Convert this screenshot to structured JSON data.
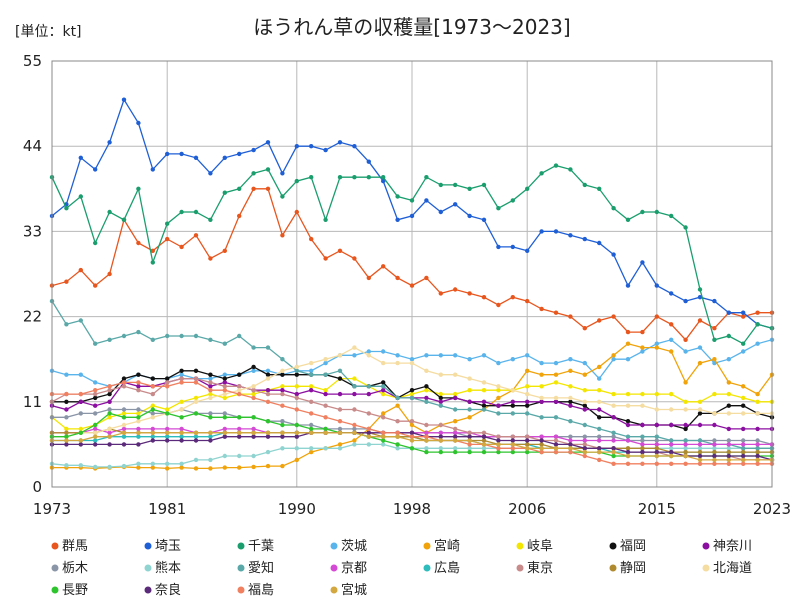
{
  "chart_data": {
    "type": "line",
    "title": "ほうれん草の収穫量[1973～2023]",
    "unit_label": "[単位：kt]",
    "xlabel": "",
    "ylabel": "",
    "xlim": [
      1973,
      2023
    ],
    "ylim": [
      0,
      55
    ],
    "x_ticks": [
      1973,
      1981,
      1990,
      1998,
      2006,
      2015,
      2023
    ],
    "y_ticks": [
      0,
      11,
      22,
      33,
      44,
      55
    ],
    "grid": true,
    "legend_position": "bottom",
    "x": [
      1973,
      1974,
      1975,
      1976,
      1977,
      1978,
      1979,
      1980,
      1981,
      1982,
      1983,
      1984,
      1985,
      1986,
      1987,
      1988,
      1989,
      1990,
      1991,
      1992,
      1993,
      1994,
      1995,
      1996,
      1997,
      1998,
      1999,
      2000,
      2001,
      2002,
      2003,
      2004,
      2005,
      2006,
      2007,
      2008,
      2009,
      2010,
      2011,
      2012,
      2013,
      2014,
      2015,
      2016,
      2017,
      2018,
      2019,
      2020,
      2021,
      2022,
      2023
    ],
    "series": [
      {
        "name": "群馬",
        "color": "#e8561e",
        "values": [
          26,
          26.5,
          28,
          26,
          27.5,
          34.5,
          31.5,
          30.5,
          32,
          31,
          32.5,
          29.5,
          30.5,
          35,
          38.5,
          38.5,
          32.5,
          35.5,
          32,
          29.5,
          30.5,
          29.5,
          27,
          28.5,
          27,
          26,
          27,
          25,
          25.5,
          25,
          24.5,
          23.5,
          24.5,
          24,
          23,
          22.5,
          22,
          20.5,
          21.5,
          22,
          20,
          20,
          22,
          21,
          19,
          21.5,
          20.5,
          22.5,
          22,
          22.5,
          22.5
        ]
      },
      {
        "name": "埼玉",
        "color": "#1f5fd6",
        "values": [
          35,
          36.5,
          42.5,
          41,
          44.5,
          50,
          47,
          41,
          43,
          43,
          42.5,
          40.5,
          42.5,
          43,
          43.5,
          44.5,
          40.5,
          44,
          44,
          43.5,
          44.5,
          44,
          42,
          39.5,
          34.5,
          35,
          37,
          35.5,
          36.5,
          35,
          34.5,
          31,
          31,
          30.5,
          33,
          33,
          32.5,
          32,
          31.5,
          30,
          26,
          29,
          26,
          25,
          24,
          24.5,
          24,
          22.5,
          22.5,
          21,
          20.5
        ]
      },
      {
        "name": "千葉",
        "color": "#1a9e6e",
        "values": [
          40,
          36,
          37.5,
          31.5,
          35.5,
          34.5,
          38.5,
          29,
          34,
          35.5,
          35.5,
          34.5,
          38,
          38.5,
          40.5,
          41,
          37.5,
          39.5,
          40,
          34.5,
          40,
          40,
          40,
          40,
          37.5,
          37,
          40,
          39,
          39,
          38.5,
          39,
          36,
          37,
          38.5,
          40.5,
          41.5,
          41,
          39,
          38.5,
          36,
          34.5,
          35.5,
          35.5,
          35,
          33.5,
          25.5,
          19,
          19.5,
          18.5,
          21,
          20.5
        ]
      },
      {
        "name": "茨城",
        "color": "#5ab4ec",
        "values": [
          15,
          14.5,
          14.5,
          13.5,
          13,
          13.5,
          14.5,
          14,
          14,
          14.5,
          14,
          14,
          14.5,
          14.5,
          15,
          15,
          14.5,
          15,
          15,
          16,
          17,
          17,
          17.5,
          17.5,
          17,
          16.5,
          17,
          17,
          17,
          16.5,
          17,
          16,
          16.5,
          17,
          16,
          16,
          16.5,
          16,
          14,
          16.5,
          16.5,
          17.5,
          18.5,
          19,
          17.5,
          18,
          16,
          16.5,
          17.5,
          18.5,
          19
        ]
      },
      {
        "name": "宮崎",
        "color": "#f0a30a",
        "values": [
          2.5,
          2.5,
          2.5,
          2.4,
          2.5,
          2.6,
          2.5,
          2.5,
          2.4,
          2.5,
          2.4,
          2.4,
          2.5,
          2.5,
          2.6,
          2.7,
          2.7,
          3.5,
          4.5,
          5,
          5.5,
          6,
          7.5,
          9.5,
          10.5,
          8,
          7,
          8,
          8.5,
          9,
          10,
          11.5,
          12.5,
          15,
          14.5,
          14.5,
          15,
          14.5,
          15.5,
          17,
          18.5,
          18,
          18,
          17.5,
          13.5,
          16,
          16.5,
          13.5,
          13,
          12,
          14.5
        ]
      },
      {
        "name": "岐阜",
        "color": "#f3e600",
        "values": [
          9,
          7.5,
          7.5,
          8,
          9,
          9.5,
          9.5,
          10.5,
          10,
          11,
          11.5,
          12,
          11.5,
          12,
          12,
          12.5,
          13,
          13,
          13,
          12.5,
          14,
          14,
          13,
          12,
          11.5,
          12,
          12.5,
          12,
          12,
          12.5,
          12.5,
          12.5,
          12.5,
          13,
          13,
          13.5,
          13,
          12.5,
          12.5,
          12,
          12,
          12,
          12,
          12,
          11,
          11,
          12,
          12,
          11.5,
          11,
          11
        ]
      },
      {
        "name": "福岡",
        "color": "#111111",
        "values": [
          11,
          11,
          11,
          11.5,
          12,
          14,
          14.5,
          14,
          14,
          15,
          15,
          14.5,
          14,
          14.5,
          15.5,
          14.5,
          14.5,
          14.5,
          14.5,
          14.5,
          14,
          13,
          13,
          13.5,
          11.5,
          12.5,
          13,
          11.5,
          11.5,
          11,
          10.5,
          10.5,
          10.5,
          10.5,
          11,
          11,
          11,
          10.5,
          9,
          9,
          8.5,
          8,
          8,
          8,
          7.5,
          9.5,
          9.5,
          10.5,
          10.5,
          9.5,
          9
        ]
      },
      {
        "name": "神奈川",
        "color": "#8b0fa0",
        "values": [
          10.5,
          10,
          11,
          10.5,
          11,
          13.5,
          13,
          13,
          13.5,
          14,
          14,
          13,
          13.5,
          13,
          12.5,
          12.5,
          12.5,
          12,
          12.5,
          12,
          12,
          12,
          12,
          12.5,
          11.5,
          11.5,
          11.5,
          11,
          11.5,
          11,
          11,
          10.5,
          11,
          11,
          11,
          11,
          10.5,
          10,
          10,
          9,
          8,
          8,
          8,
          8,
          8,
          8,
          8,
          7.5,
          7.5,
          7.5,
          7.5
        ]
      },
      {
        "name": "栃木",
        "color": "#8a96a8",
        "values": [
          9,
          9,
          9.5,
          9.5,
          10,
          10,
          10,
          9.5,
          9.5,
          10,
          9.5,
          9.5,
          9.5,
          9,
          9,
          8.5,
          8.5,
          8,
          8,
          7.5,
          7.5,
          7.5,
          7.5,
          7,
          7,
          7,
          7,
          7,
          7,
          6.5,
          6.5,
          6.5,
          6.5,
          6.5,
          6.5,
          6.5,
          6.5,
          6.5,
          6.5,
          6.5,
          6,
          6,
          6,
          6,
          6,
          6,
          6,
          6,
          6,
          6,
          5.5
        ]
      },
      {
        "name": "熊本",
        "color": "#8fd4d0",
        "values": [
          3,
          2.8,
          2.8,
          2.6,
          2.6,
          2.7,
          3,
          3,
          3,
          3,
          3.5,
          3.5,
          4,
          4,
          4,
          4.5,
          5,
          5,
          5,
          5,
          5,
          5.5,
          5.5,
          5.5,
          5,
          5,
          5,
          5,
          5,
          5,
          5,
          5,
          5,
          5,
          5,
          5,
          5,
          5,
          5,
          5,
          5,
          5,
          5,
          5,
          5,
          5,
          5,
          5,
          5,
          5,
          5
        ]
      },
      {
        "name": "愛知",
        "color": "#5aa8a8",
        "values": [
          24,
          21,
          21.5,
          18.5,
          19,
          19.5,
          20,
          19,
          19.5,
          19.5,
          19.5,
          19,
          18.5,
          19.5,
          18,
          18,
          16.5,
          15,
          14.5,
          14.5,
          15,
          13,
          13,
          13,
          11.5,
          11.5,
          11,
          10.5,
          10,
          10,
          10,
          9.5,
          9.5,
          9.5,
          9,
          9,
          8.5,
          8,
          7.5,
          7,
          6.5,
          6.5,
          6.5,
          6,
          6,
          6,
          5.5,
          5.5,
          5,
          5,
          5
        ]
      },
      {
        "name": "京都",
        "color": "#d44ad4",
        "values": [
          7,
          7,
          7,
          7.5,
          7,
          7.5,
          7.5,
          7.5,
          7.5,
          7.5,
          7,
          7,
          7.5,
          7.5,
          7.5,
          7,
          7,
          7,
          7,
          7,
          7,
          7,
          7,
          7,
          7,
          7,
          7,
          7,
          7,
          7,
          6.5,
          6.5,
          6.5,
          6.5,
          6.5,
          6.5,
          6,
          6,
          6,
          6,
          6,
          5.5,
          5.5,
          5.5,
          5.5,
          5.5,
          5.5,
          5.5,
          5.5,
          5.5,
          5.5
        ]
      },
      {
        "name": "広島",
        "color": "#2fbcbc",
        "values": [
          6,
          6,
          6,
          6,
          6.5,
          6.5,
          6.5,
          6.5,
          6.5,
          6.5,
          6.5,
          6.5,
          7,
          7,
          7,
          7,
          7,
          7,
          7,
          7,
          7,
          7,
          6.5,
          6.5,
          6.5,
          6.5,
          6,
          6,
          6,
          6,
          5.5,
          5.5,
          5.5,
          5.5,
          5,
          5,
          5,
          5,
          5,
          4.5,
          4.5,
          4.5,
          4.5,
          4.5,
          4.5,
          4.5,
          4.5,
          4.5,
          4.5,
          4.5,
          4.5
        ]
      },
      {
        "name": "東京",
        "color": "#c98a8a",
        "values": [
          11,
          12,
          12,
          12,
          12.5,
          13,
          12.5,
          12,
          13.5,
          14,
          14,
          13.5,
          13,
          13,
          12.5,
          12,
          12,
          11.5,
          11,
          10.5,
          10,
          10,
          9.5,
          9,
          8.5,
          8.5,
          8,
          8,
          7.5,
          7,
          7,
          6.5,
          6.5,
          6.5,
          6,
          6,
          5.5,
          5.5,
          5,
          5,
          4.5,
          4.5,
          4.5,
          4,
          4,
          4,
          4,
          4,
          3.5,
          3.5,
          3.5
        ]
      },
      {
        "name": "静岡",
        "color": "#b08a2e",
        "values": [
          7,
          7,
          7,
          7,
          7.5,
          7,
          7,
          7,
          7,
          7,
          7,
          7,
          7,
          7,
          7,
          7,
          7,
          7,
          7,
          7,
          7,
          7,
          7,
          6.5,
          6.5,
          6.5,
          6,
          6,
          6,
          6,
          6,
          5.5,
          5.5,
          5.5,
          5.5,
          5,
          5,
          5,
          5,
          5,
          5,
          5,
          5,
          4.5,
          4.5,
          4.5,
          4.5,
          4.5,
          4.5,
          4.5,
          4.5
        ]
      },
      {
        "name": "北海道",
        "color": "#f5dca0",
        "values": [
          6.5,
          6.5,
          7,
          7,
          7.5,
          8,
          8.5,
          9,
          9.5,
          10,
          11,
          11.5,
          12,
          12.5,
          13,
          14,
          15,
          15.5,
          16,
          16.5,
          17,
          18,
          17,
          16,
          16,
          16,
          15,
          14.5,
          14.5,
          14,
          13.5,
          13,
          12.5,
          12,
          11.5,
          11.5,
          11.5,
          11,
          11,
          10.5,
          10.5,
          10.5,
          10,
          10,
          10,
          10,
          9.5,
          9.5,
          9.5,
          9.5,
          9.5
        ]
      },
      {
        "name": "長野",
        "color": "#2ec42e",
        "values": [
          6.5,
          6.5,
          7,
          8,
          9.5,
          9,
          9,
          10,
          9.5,
          9,
          9.5,
          9,
          9,
          9,
          9,
          8.5,
          8,
          8,
          7.5,
          7.5,
          7,
          7,
          6.5,
          6,
          5.5,
          5,
          4.5,
          4.5,
          4.5,
          4.5,
          4.5,
          4.5,
          4.5,
          4.5,
          4.5,
          4.5,
          4.5,
          4.5,
          4.5,
          4,
          4,
          4,
          4,
          4,
          4,
          4,
          4,
          4,
          4,
          4,
          4
        ]
      },
      {
        "name": "奈良",
        "color": "#5b2a7a",
        "values": [
          5.5,
          5.5,
          5.5,
          5.5,
          5.5,
          5.5,
          5.5,
          6,
          6,
          6,
          6,
          6,
          6.5,
          6.5,
          6.5,
          6.5,
          6.5,
          6.5,
          7,
          7,
          7,
          7,
          7,
          7,
          7,
          7,
          6.5,
          6.5,
          6.5,
          6.5,
          6.5,
          6,
          6,
          6,
          6,
          5.5,
          5.5,
          5,
          5,
          5,
          4.5,
          4.5,
          4.5,
          4.5,
          4,
          4,
          4,
          4,
          4,
          4,
          3.5
        ]
      },
      {
        "name": "福島",
        "color": "#f08060",
        "values": [
          12,
          12,
          12,
          12.5,
          13,
          13.5,
          13.5,
          13,
          13,
          13.5,
          13.5,
          12.5,
          12.5,
          12,
          11.5,
          11,
          10.5,
          10,
          9.5,
          9,
          8.5,
          8,
          7.5,
          7,
          7,
          6.5,
          6.5,
          6,
          6,
          5.5,
          5.5,
          5,
          5,
          5,
          4.5,
          4.5,
          4.5,
          4,
          3.5,
          3,
          3,
          3,
          3,
          3,
          3,
          3,
          3,
          3,
          3,
          3,
          3
        ]
      },
      {
        "name": "宮城",
        "color": "#d4a840",
        "values": [
          6,
          6,
          6,
          6.5,
          6.5,
          7,
          7,
          7,
          7,
          7,
          7,
          7,
          7,
          7,
          7,
          7,
          7,
          7,
          7,
          7,
          7,
          7,
          6.5,
          6.5,
          6.5,
          6,
          6,
          6,
          6,
          6,
          5.5,
          5.5,
          5.5,
          5,
          5,
          5,
          5,
          4.5,
          4.5,
          4.5,
          4,
          4,
          4,
          4,
          4,
          3.5,
          3.5,
          3.5,
          3.5,
          3.5,
          3.5
        ]
      }
    ]
  }
}
